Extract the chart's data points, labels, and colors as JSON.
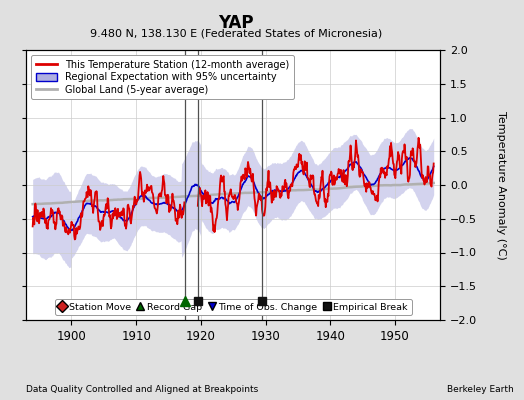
{
  "title": "YAP",
  "subtitle": "9.480 N, 138.130 E (Federated States of Micronesia)",
  "ylabel": "Temperature Anomaly (°C)",
  "xlabel_left": "Data Quality Controlled and Aligned at Breakpoints",
  "xlabel_right": "Berkeley Earth",
  "xlim": [
    1893,
    1957
  ],
  "ylim": [
    -2,
    2
  ],
  "yticks": [
    -2,
    -1.5,
    -1,
    -0.5,
    0,
    0.5,
    1,
    1.5,
    2
  ],
  "xticks": [
    1900,
    1910,
    1920,
    1930,
    1940,
    1950
  ],
  "bg_color": "#e0e0e0",
  "plot_bg_color": "#ffffff",
  "grid_color": "#cccccc",
  "red_line_color": "#dd0000",
  "blue_line_color": "#0000cc",
  "blue_fill_color": "#b0b0e0",
  "gray_line_color": "#b0b0b0",
  "legend_labels": [
    "This Temperature Station (12-month average)",
    "Regional Expectation with 95% uncertainty",
    "Global Land (5-year average)"
  ],
  "vline_color": "#505050",
  "marker_record_gap_x": 1917.5,
  "marker_empirical_break_x1": 1919.5,
  "marker_empirical_break_x2": 1929.5,
  "seed": 7
}
